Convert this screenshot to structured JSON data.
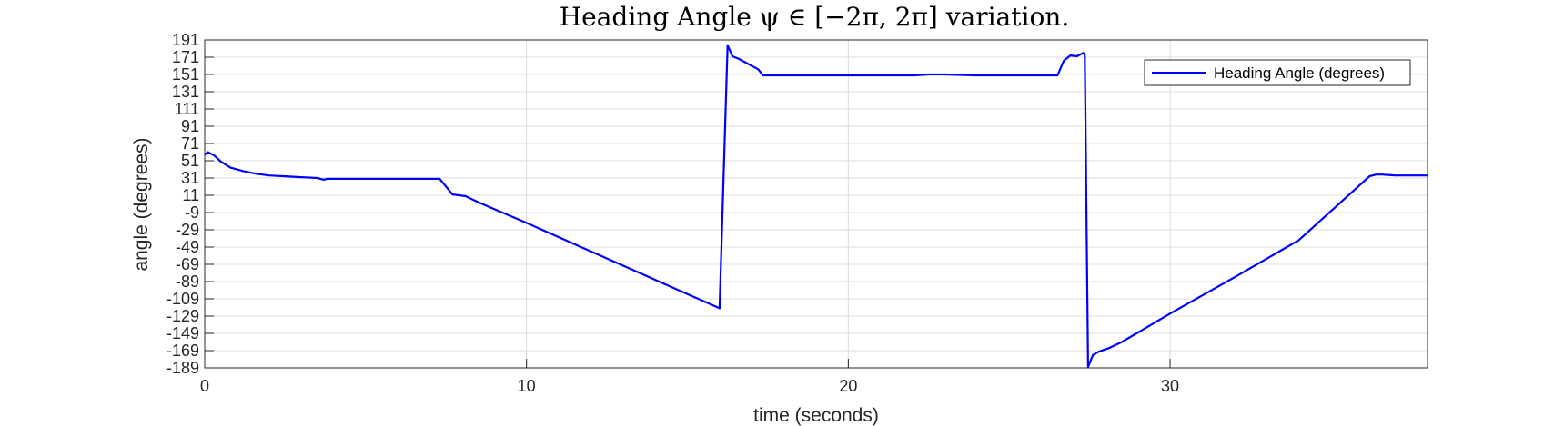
{
  "chart_data": {
    "type": "line",
    "title": "Heading Angle ψ ∈ [−2π, 2π] variation.",
    "xlabel": "time (seconds)",
    "ylabel": "angle (degrees)",
    "xlim": [
      0,
      38
    ],
    "ylim": [
      -189,
      191
    ],
    "xticks": [
      0,
      10,
      20,
      30
    ],
    "yticks": [
      191,
      171,
      151,
      131,
      111,
      91,
      71,
      51,
      31,
      11,
      -9,
      -29,
      -49,
      -69,
      -89,
      -109,
      -129,
      -149,
      -169,
      -189
    ],
    "grid": true,
    "legend_position": "top-right",
    "colors": {
      "series": "#0000ff",
      "axis": "#262626",
      "grid": "#dcdcdc"
    },
    "series": [
      {
        "name": "Heading Angle (degrees)",
        "x": [
          0,
          0.1,
          0.3,
          0.5,
          0.8,
          1.2,
          1.6,
          2.0,
          2.5,
          3.0,
          3.5,
          3.7,
          3.8,
          4.0,
          5.0,
          6.0,
          7.0,
          7.3,
          7.5,
          7.7,
          7.9,
          8.1,
          8.5,
          9.0,
          10.0,
          12.0,
          14.0,
          16.0,
          16.25,
          16.4,
          16.6,
          16.9,
          17.2,
          17.35,
          17.5,
          18.0,
          19.0,
          20.0,
          21.0,
          22.0,
          22.5,
          23.0,
          24.0,
          25.0,
          26.0,
          26.5,
          26.7,
          26.9,
          27.1,
          27.3,
          27.35,
          27.45,
          27.6,
          27.8,
          28.1,
          28.5,
          30.0,
          32.0,
          34.0,
          36.2,
          36.4,
          36.6,
          37.0,
          38.0
        ],
        "y": [
          58,
          61,
          57,
          50,
          43,
          39,
          36,
          34,
          33,
          32,
          31,
          29,
          30,
          30,
          30,
          30,
          30,
          30,
          21,
          12,
          11,
          10,
          3,
          -5,
          -21,
          -54,
          -87,
          -120,
          185,
          172,
          169,
          163,
          157,
          150,
          150,
          150,
          150,
          150,
          150,
          150,
          151,
          151,
          150,
          150,
          150,
          150,
          167,
          173,
          172,
          176,
          173,
          -188,
          -174,
          -170,
          -166,
          -159,
          -126,
          -84,
          -41,
          33,
          35,
          35,
          34,
          34
        ]
      }
    ]
  }
}
